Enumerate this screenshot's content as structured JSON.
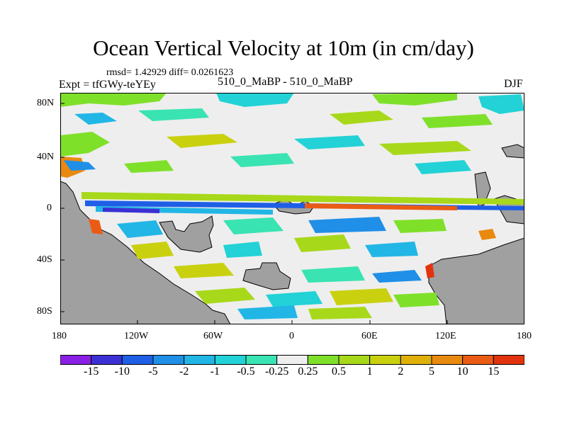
{
  "title": "Ocean Vertical Velocity at 10m (in cm/day)",
  "stats": "rmsd= 1.42929 diff= 0.0261623",
  "experiment": "Expt = tfGWy-teYEy",
  "comparison": "510_0_MaBP - 510_0_MaBP",
  "season": "DJF",
  "map": {
    "lat_ticks": [
      "80N",
      "40N",
      "0",
      "40S",
      "80S"
    ],
    "lon_ticks": [
      "180",
      "120W",
      "60W",
      "0",
      "60E",
      "120E",
      "180"
    ],
    "land_color": "#a0a0a0"
  },
  "colorbar": {
    "labels": [
      "-15",
      "-10",
      "-5",
      "-2",
      "-1",
      "-0.5",
      "-0.25",
      "0.25",
      "0.5",
      "1",
      "2",
      "5",
      "10",
      "15"
    ],
    "colors": [
      "#8a1fe6",
      "#3c2fd4",
      "#1f5fe6",
      "#1f8fe8",
      "#22b6e6",
      "#22d2d6",
      "#39e3b2",
      "#eeeeee",
      "#7fe02a",
      "#a8d81a",
      "#c9d10f",
      "#dfb00a",
      "#e98a10",
      "#ea5c16",
      "#e2330f"
    ]
  }
}
